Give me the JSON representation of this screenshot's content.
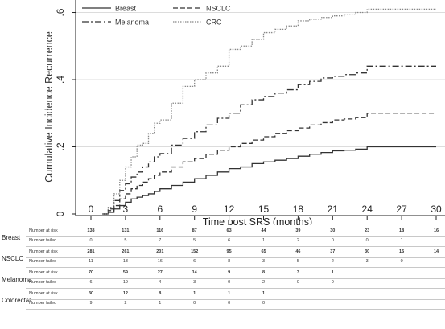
{
  "chart_data": {
    "type": "line",
    "title": "",
    "xlabel": "Time post SRS (months)",
    "ylabel": "Cumulative Incidence Recurrence",
    "xlim": [
      0,
      30
    ],
    "ylim": [
      0,
      0.63
    ],
    "xticks": [
      0,
      3,
      6,
      9,
      12,
      15,
      18,
      21,
      24,
      27,
      30
    ],
    "yticks": [
      0,
      0.2,
      0.4,
      0.6
    ],
    "ytick_labels": [
      "0",
      ".2",
      ".4",
      ".6"
    ],
    "grid": true,
    "legend_position": "top",
    "series": [
      {
        "name": "Breast",
        "style": "solid",
        "color": "#333333",
        "points": [
          [
            1,
            0
          ],
          [
            1.5,
            0.005
          ],
          [
            2,
            0.015
          ],
          [
            2.5,
            0.025
          ],
          [
            3,
            0.035
          ],
          [
            3.5,
            0.045
          ],
          [
            4,
            0.05
          ],
          [
            4.5,
            0.055
          ],
          [
            5,
            0.06
          ],
          [
            5.5,
            0.067
          ],
          [
            6,
            0.075
          ],
          [
            7,
            0.085
          ],
          [
            8,
            0.095
          ],
          [
            9,
            0.105
          ],
          [
            10,
            0.115
          ],
          [
            11,
            0.125
          ],
          [
            12,
            0.135
          ],
          [
            13,
            0.14
          ],
          [
            14,
            0.15
          ],
          [
            15,
            0.155
          ],
          [
            16,
            0.16
          ],
          [
            17,
            0.165
          ],
          [
            18,
            0.172
          ],
          [
            19,
            0.178
          ],
          [
            20,
            0.183
          ],
          [
            21,
            0.188
          ],
          [
            22,
            0.19
          ],
          [
            23,
            0.193
          ],
          [
            24,
            0.2
          ],
          [
            30,
            0.2
          ]
        ]
      },
      {
        "name": "NSCLC",
        "style": "dashed",
        "color": "#333333",
        "points": [
          [
            1,
            0
          ],
          [
            1.5,
            0.01
          ],
          [
            2,
            0.025
          ],
          [
            2.5,
            0.045
          ],
          [
            3,
            0.06
          ],
          [
            3.5,
            0.075
          ],
          [
            4,
            0.085
          ],
          [
            4.5,
            0.095
          ],
          [
            5,
            0.105
          ],
          [
            5.5,
            0.115
          ],
          [
            6,
            0.125
          ],
          [
            7,
            0.14
          ],
          [
            8,
            0.155
          ],
          [
            9,
            0.165
          ],
          [
            10,
            0.178
          ],
          [
            11,
            0.19
          ],
          [
            12,
            0.2
          ],
          [
            13,
            0.21
          ],
          [
            14,
            0.22
          ],
          [
            15,
            0.23
          ],
          [
            16,
            0.24
          ],
          [
            17,
            0.248
          ],
          [
            18,
            0.256
          ],
          [
            19,
            0.265
          ],
          [
            20,
            0.272
          ],
          [
            21,
            0.28
          ],
          [
            22,
            0.283
          ],
          [
            23,
            0.287
          ],
          [
            24,
            0.3
          ],
          [
            30,
            0.3
          ]
        ]
      },
      {
        "name": "Melanoma",
        "style": "dashdot",
        "color": "#333333",
        "points": [
          [
            1,
            0
          ],
          [
            1.5,
            0.015
          ],
          [
            2,
            0.04
          ],
          [
            2.5,
            0.07
          ],
          [
            3,
            0.09
          ],
          [
            3.5,
            0.11
          ],
          [
            4,
            0.125
          ],
          [
            4.5,
            0.14
          ],
          [
            5,
            0.155
          ],
          [
            5.5,
            0.17
          ],
          [
            6,
            0.18
          ],
          [
            7,
            0.205
          ],
          [
            8,
            0.225
          ],
          [
            9,
            0.245
          ],
          [
            10,
            0.265
          ],
          [
            11,
            0.285
          ],
          [
            12,
            0.3
          ],
          [
            13,
            0.325
          ],
          [
            14,
            0.34
          ],
          [
            15,
            0.35
          ],
          [
            16,
            0.36
          ],
          [
            17,
            0.37
          ],
          [
            18,
            0.385
          ],
          [
            19,
            0.395
          ],
          [
            20,
            0.405
          ],
          [
            21,
            0.41
          ],
          [
            22,
            0.415
          ],
          [
            23,
            0.42
          ],
          [
            24,
            0.44
          ],
          [
            30,
            0.44
          ]
        ]
      },
      {
        "name": "CRC",
        "style": "dotted",
        "color": "#888888",
        "points": [
          [
            1,
            0
          ],
          [
            1.5,
            0.02
          ],
          [
            2,
            0.06
          ],
          [
            2.5,
            0.1
          ],
          [
            3,
            0.14
          ],
          [
            3.5,
            0.17
          ],
          [
            4,
            0.205
          ],
          [
            4.5,
            0.21
          ],
          [
            5,
            0.24
          ],
          [
            5.5,
            0.27
          ],
          [
            6,
            0.28
          ],
          [
            7,
            0.33
          ],
          [
            8,
            0.38
          ],
          [
            9,
            0.4
          ],
          [
            10,
            0.42
          ],
          [
            11,
            0.44
          ],
          [
            12,
            0.49
          ],
          [
            13,
            0.5
          ],
          [
            14,
            0.52
          ],
          [
            15,
            0.54
          ],
          [
            16,
            0.55
          ],
          [
            17,
            0.56
          ],
          [
            18,
            0.575
          ],
          [
            19,
            0.58
          ],
          [
            20,
            0.585
          ],
          [
            21,
            0.59
          ],
          [
            22,
            0.595
          ],
          [
            23,
            0.6
          ],
          [
            24,
            0.61
          ],
          [
            30,
            0.61
          ]
        ]
      }
    ]
  },
  "risk_table": {
    "timepoints": [
      0,
      3,
      6,
      9,
      12,
      15,
      18,
      21,
      24,
      27,
      30
    ],
    "groups": [
      {
        "label": "Breast",
        "rows": [
          {
            "label": "Number at risk",
            "kind": "at-risk",
            "values": [
              "138",
              "131",
              "116",
              "87",
              "63",
              "44",
              "39",
              "30",
              "23",
              "18",
              "16"
            ]
          },
          {
            "label": "Number failed",
            "kind": "failed",
            "values": [
              "0",
              "5",
              "7",
              "5",
              "6",
              "1",
              "2",
              "0",
              "0",
              "1",
              ""
            ]
          }
        ]
      },
      {
        "label": "NSCLC",
        "rows": [
          {
            "label": "Number at risk",
            "kind": "at-risk",
            "values": [
              "281",
              "261",
              "201",
              "152",
              "95",
              "65",
              "46",
              "37",
              "30",
              "15",
              "14"
            ]
          },
          {
            "label": "Number failed",
            "kind": "failed",
            "values": [
              "11",
              "13",
              "16",
              "6",
              "8",
              "3",
              "5",
              "2",
              "3",
              "0",
              ""
            ]
          }
        ]
      },
      {
        "label": "Melanoma",
        "rows": [
          {
            "label": "Number at risk",
            "kind": "at-risk",
            "values": [
              "70",
              "59",
              "27",
              "14",
              "9",
              "8",
              "3",
              "1",
              "",
              "",
              ""
            ]
          },
          {
            "label": "Number failed",
            "kind": "failed",
            "values": [
              "6",
              "19",
              "4",
              "3",
              "0",
              "2",
              "0",
              "0",
              "",
              "",
              ""
            ]
          }
        ]
      },
      {
        "label": "Colorectal",
        "rows": [
          {
            "label": "Number at risk",
            "kind": "at-risk",
            "values": [
              "30",
              "12",
              "8",
              "1",
              "1",
              "1",
              "",
              "",
              "",
              "",
              ""
            ]
          },
          {
            "label": "Number failed",
            "kind": "failed",
            "values": [
              "9",
              "2",
              "1",
              "0",
              "0",
              "0",
              "",
              "",
              "",
              "",
              ""
            ]
          }
        ]
      }
    ]
  }
}
